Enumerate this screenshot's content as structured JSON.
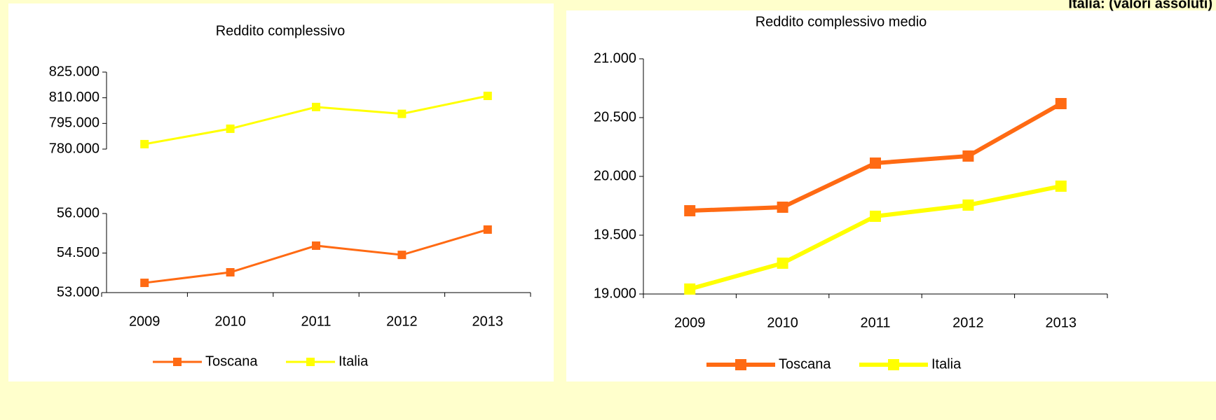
{
  "chart_data": [
    {
      "type": "line",
      "title": "Reddito complessivo",
      "categories": [
        "2009",
        "2010",
        "2011",
        "2012",
        "2013"
      ],
      "series": [
        {
          "name": "Toscana",
          "color": "#ff6a13",
          "values": [
            53370,
            53770,
            54780,
            54430,
            55390
          ]
        },
        {
          "name": "Italia",
          "color": "#ffff00",
          "axis": "y2",
          "values": [
            782900,
            791900,
            804600,
            800600,
            811100
          ]
        }
      ],
      "ylim": [
        53000,
        56000
      ],
      "yticks": [
        {
          "value": 53000,
          "label": "53.000"
        },
        {
          "value": 54500,
          "label": "54.500"
        },
        {
          "value": 56000,
          "label": "56.000"
        }
      ],
      "y2lim": [
        780000,
        825000
      ],
      "y2ticks": [
        {
          "value": 780000,
          "label": "780.000"
        },
        {
          "value": 795000,
          "label": "795.000"
        },
        {
          "value": 810000,
          "label": "810.000"
        },
        {
          "value": 825000,
          "label": "825.000"
        }
      ],
      "legend": "bottom"
    },
    {
      "type": "line",
      "title": "Reddito complessivo medio",
      "subtitle": "Italia: (valori assoluti)",
      "categories": [
        "2009",
        "2010",
        "2011",
        "2012",
        "2013"
      ],
      "series": [
        {
          "name": "Toscana",
          "color": "#ff6a13",
          "values": [
            19708,
            19738,
            20113,
            20173,
            20619
          ]
        },
        {
          "name": "Italia",
          "color": "#ffff00",
          "values": [
            19042,
            19262,
            19661,
            19756,
            19917
          ]
        }
      ],
      "ylim": [
        19000,
        21000
      ],
      "yticks": [
        {
          "value": 19000,
          "label": "19.000"
        },
        {
          "value": 19500,
          "label": "19.500"
        },
        {
          "value": 20000,
          "label": "20.000"
        },
        {
          "value": 20500,
          "label": "20.500"
        },
        {
          "value": 21000,
          "label": "21.000"
        }
      ],
      "legend": "bottom"
    }
  ]
}
